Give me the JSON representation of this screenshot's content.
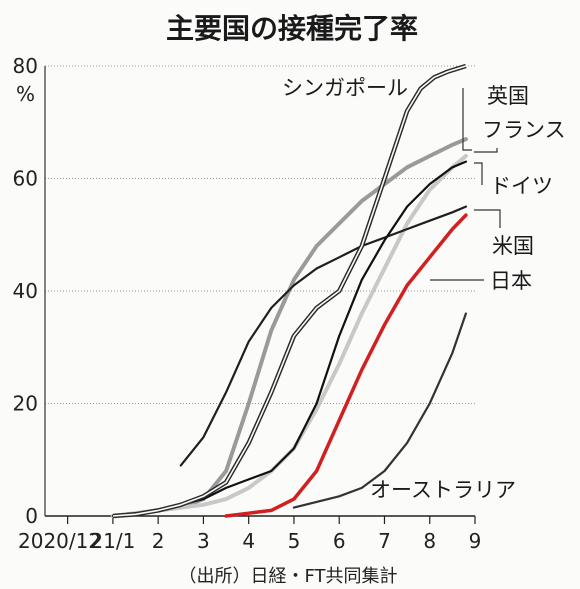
{
  "chart_data": {
    "type": "line",
    "title": "主要国の接種完了率",
    "unit_label": "%",
    "source": "（出所）日経・FT共同集計",
    "x_ticks": [
      "2020/12",
      "21/1",
      "2",
      "3",
      "4",
      "5",
      "6",
      "7",
      "8",
      "9"
    ],
    "y_ticks": [
      "0",
      "20",
      "40",
      "60",
      "80"
    ],
    "ylim": [
      0,
      80
    ],
    "grid": true,
    "series": [
      {
        "name": "シンガポール",
        "color": "#2a2a2a",
        "double": true,
        "x": [
          1.5,
          2.0,
          2.5,
          3.0,
          3.5,
          4.0,
          4.5,
          5.0,
          5.5,
          6.0,
          6.5,
          7.0,
          7.5,
          8.0,
          8.3,
          8.6,
          8.9,
          9.3
        ],
        "y": [
          0,
          0.3,
          1,
          2,
          3.5,
          6,
          13,
          22,
          32,
          37,
          40,
          48,
          60,
          72,
          76,
          78,
          79,
          80
        ]
      },
      {
        "name": "英国",
        "color": "#9a9a9a",
        "double": false,
        "x": [
          1.5,
          2.0,
          2.5,
          3.0,
          3.5,
          4.0,
          4.5,
          5.0,
          5.5,
          6.0,
          6.5,
          7.0,
          7.5,
          8.0,
          8.5,
          9.0,
          9.3
        ],
        "y": [
          0,
          0.5,
          1,
          1.5,
          3,
          8,
          20,
          33,
          42,
          48,
          52,
          56,
          59,
          62,
          64,
          66,
          67
        ]
      },
      {
        "name": "フランス",
        "color": "#c8c8c8",
        "double": false,
        "x": [
          1.5,
          2.0,
          2.5,
          3.0,
          3.5,
          4.0,
          4.5,
          5.0,
          5.5,
          6.0,
          6.5,
          7.0,
          7.5,
          8.0,
          8.5,
          9.0,
          9.3
        ],
        "y": [
          0,
          0.5,
          1,
          1.5,
          2,
          3,
          5,
          8,
          12,
          19,
          27,
          36,
          44,
          52,
          58,
          62,
          64
        ]
      },
      {
        "name": "ドイツ",
        "color": "#111111",
        "double": false,
        "x": [
          1.5,
          2.0,
          2.5,
          3.0,
          3.5,
          4.0,
          4.5,
          5.0,
          5.5,
          6.0,
          6.5,
          7.0,
          7.5,
          8.0,
          8.5,
          9.0,
          9.3
        ],
        "y": [
          0,
          0.5,
          1,
          2,
          3,
          5,
          6.5,
          8,
          12,
          20,
          32,
          42,
          49,
          55,
          59,
          62,
          63
        ]
      },
      {
        "name": "米国",
        "color": "#1f1f1f",
        "double": false,
        "x": [
          3.0,
          3.5,
          4.0,
          4.5,
          5.0,
          5.5,
          6.0,
          6.5,
          7.0,
          7.5,
          8.0,
          8.5,
          9.0,
          9.3
        ],
        "y": [
          9,
          14,
          22,
          31,
          37,
          41,
          44,
          46,
          48,
          49.5,
          51,
          52.5,
          54,
          55
        ]
      },
      {
        "name": "日本",
        "color": "#d21f1f",
        "double": false,
        "x": [
          4.0,
          4.5,
          5.0,
          5.5,
          6.0,
          6.5,
          7.0,
          7.5,
          8.0,
          8.5,
          9.0,
          9.3
        ],
        "y": [
          0,
          0.5,
          1,
          3,
          8,
          17,
          26,
          34,
          41,
          46,
          51,
          53.5
        ]
      },
      {
        "name": "オーストラリア",
        "color": "#333333",
        "double": false,
        "x": [
          5.5,
          6.0,
          6.5,
          7.0,
          7.5,
          8.0,
          8.5,
          9.0,
          9.3
        ],
        "y": [
          1.5,
          2.5,
          3.5,
          5,
          8,
          13,
          20,
          29,
          36
        ]
      }
    ],
    "x_range": [
      0,
      9.5
    ]
  }
}
